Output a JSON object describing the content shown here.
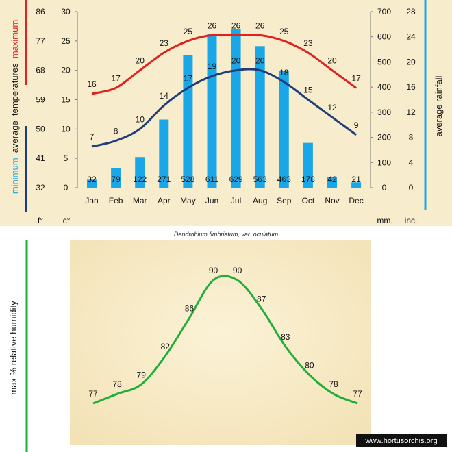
{
  "chart_data": [
    {
      "type": "bar+line",
      "categories": [
        "Jan",
        "Feb",
        "Mar",
        "Apr",
        "May",
        "Jun",
        "Jul",
        "Aug",
        "Sep",
        "Oct",
        "Nov",
        "Dec"
      ],
      "series": [
        {
          "name": "maximum",
          "kind": "line",
          "axis": "temperature_c",
          "values": [
            16,
            17,
            20,
            23,
            25,
            26,
            26,
            26,
            25,
            23,
            20,
            17
          ]
        },
        {
          "name": "minimum",
          "kind": "line",
          "axis": "temperature_c",
          "values": [
            7,
            8,
            10,
            14,
            17,
            19,
            20,
            20,
            18,
            15,
            12,
            9
          ]
        },
        {
          "name": "average rainfall",
          "kind": "bar",
          "axis": "rainfall_mm",
          "values": [
            32,
            79,
            122,
            271,
            528,
            611,
            629,
            563,
            463,
            178,
            42,
            21
          ]
        }
      ],
      "axes": {
        "fahrenheit": {
          "ticks": [
            "86",
            "77",
            "68",
            "59",
            "50",
            "41",
            "32"
          ],
          "unit": "f°"
        },
        "celsius": {
          "ticks": [
            "30",
            "25",
            "20",
            "15",
            "10",
            "5",
            "0"
          ],
          "unit": "c°",
          "ylim": [
            0,
            30
          ]
        },
        "mm": {
          "ticks": [
            "700",
            "600",
            "500",
            "400",
            "300",
            "200",
            "100",
            "0"
          ],
          "unit": "mm.",
          "ylim": [
            0,
            700
          ]
        },
        "inches": {
          "ticks": [
            "28",
            "24",
            "20",
            "16",
            "12",
            "8",
            "4",
            "0"
          ],
          "unit": "inc."
        }
      },
      "left_label": {
        "parts": [
          "minimum",
          "average",
          "temperatures",
          "maximum"
        ]
      },
      "right_label": "average rainfall",
      "caption": "Dendrobium fimbriatum, var. oculatum",
      "colors": {
        "max": "#e0221f",
        "min": "#1f3d7a",
        "bar": "#1aa7e8",
        "max_axis": "#e0221f",
        "min_axis": "#1f3d7a",
        "rain_axis": "#1aa7e8"
      }
    },
    {
      "type": "line",
      "categories": [
        "Jan",
        "Feb",
        "Mar",
        "Apr",
        "May",
        "Jun",
        "Jul",
        "Aug",
        "Sep",
        "Oct",
        "Nov",
        "Dec"
      ],
      "series": [
        {
          "name": "max % relative humidity",
          "values": [
            77,
            78,
            79,
            82,
            86,
            90,
            90,
            87,
            83,
            80,
            78,
            77
          ]
        }
      ],
      "ylabel": "max % relative humidity",
      "colors": {
        "line": "#1fae3a",
        "axis": "#1fae3a"
      }
    }
  ],
  "watermark": "www.hortusorchis.org"
}
